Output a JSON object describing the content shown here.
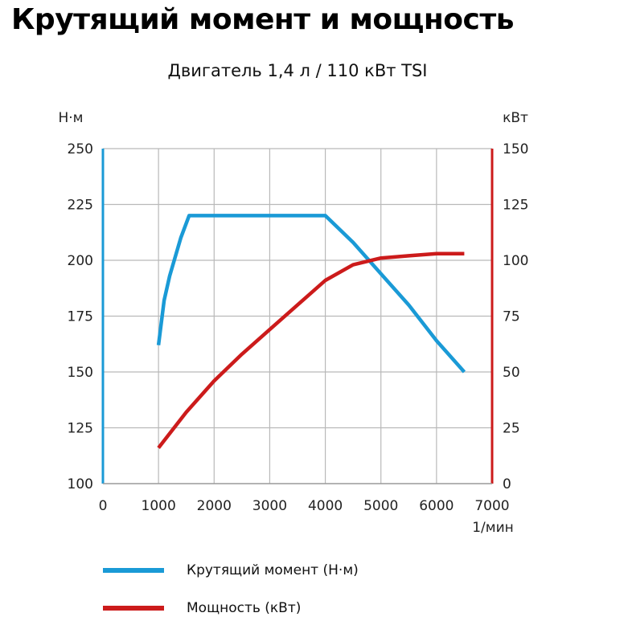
{
  "header": {
    "title": "Крутящий момент и мощность",
    "subtitle": "Двигатель 1,4 л / 110 кВт TSI"
  },
  "chart_data": {
    "type": "line",
    "title": "Крутящий момент и мощность",
    "subtitle": "Двигатель 1,4 л / 110 кВт TSI",
    "xlabel": "1/мин",
    "ylabel": "Н·м",
    "ylabel_right": "кВт",
    "xlim": [
      0,
      7000
    ],
    "ylim": [
      100,
      250
    ],
    "ylim_right": [
      0,
      150
    ],
    "x_ticks": [
      "0",
      "1000",
      "2000",
      "3000",
      "4000",
      "5000",
      "6000",
      "7000"
    ],
    "y_ticks": [
      "100",
      "125",
      "150",
      "175",
      "200",
      "225",
      "250"
    ],
    "y_ticks_right": [
      "0",
      "25",
      "50",
      "75",
      "100",
      "125",
      "150"
    ],
    "grid": true,
    "legend_position": "bottom",
    "series": [
      {
        "name": "Крутящий момент (Н·м)",
        "axis": "left",
        "color": "#1a9ad6",
        "x": [
          1000,
          1100,
          1200,
          1400,
          1550,
          2000,
          3000,
          3500,
          4000,
          4500,
          5000,
          5500,
          6000,
          6500
        ],
        "y": [
          162,
          182,
          193,
          210,
          220,
          220,
          220,
          220,
          220,
          208,
          194,
          180,
          164,
          150
        ]
      },
      {
        "name": "Мощность (кВт)",
        "axis": "right",
        "color": "#cc1b1b",
        "x": [
          1000,
          1500,
          2000,
          2500,
          3000,
          3500,
          4000,
          4500,
          5000,
          5500,
          6000,
          6500
        ],
        "y": [
          16,
          32,
          46,
          58,
          69,
          80,
          91,
          98,
          101,
          102,
          103,
          103
        ]
      }
    ]
  }
}
